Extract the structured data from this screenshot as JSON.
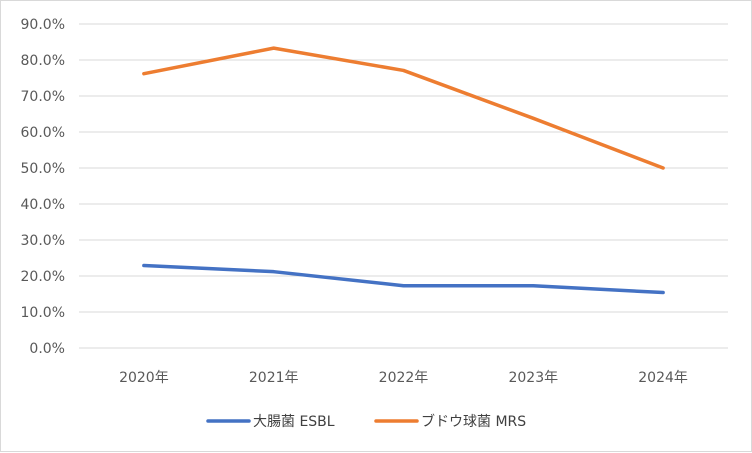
{
  "chart_data": {
    "type": "line",
    "categories": [
      "2020年",
      "2021年",
      "2022年",
      "2023年",
      "2024年"
    ],
    "y_ticks": [
      "0.0%",
      "10.0%",
      "20.0%",
      "30.0%",
      "40.0%",
      "50.0%",
      "60.0%",
      "70.0%",
      "80.0%",
      "90.0%"
    ],
    "ylim": [
      0,
      90
    ],
    "grid": true,
    "legend_position": "bottom",
    "series": [
      {
        "name": "大腸菌 ESBL",
        "color": "#4472c4",
        "values": [
          22.9,
          21.2,
          17.3,
          17.3,
          15.4
        ]
      },
      {
        "name": "ブドウ球菌 MRS",
        "color": "#ed7d31",
        "values": [
          76.2,
          83.3,
          77.1,
          63.8,
          50.0
        ]
      }
    ]
  }
}
